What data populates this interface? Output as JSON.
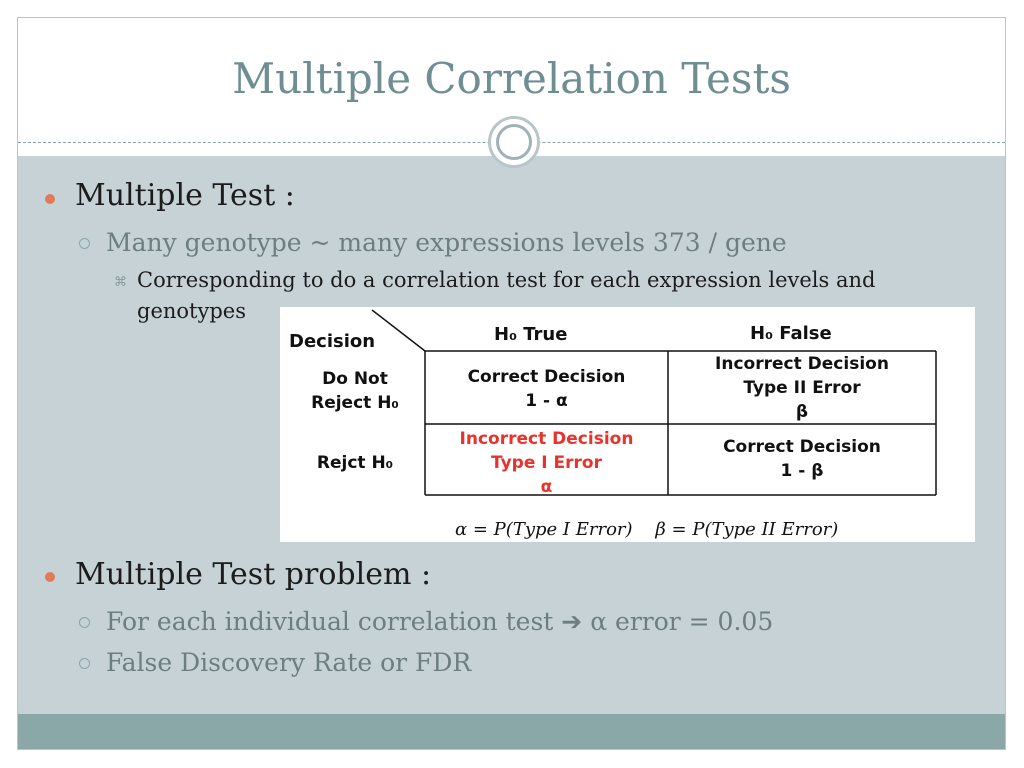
{
  "title": "Multiple Correlation Tests",
  "section1": {
    "heading": "Multiple Test :",
    "sub": "Many genotype ~ many expressions levels 373 / gene",
    "detail_line1": "Corresponding to do a correlation test for each expression levels and",
    "detail_line2": "genotypes"
  },
  "table": {
    "decision_label": "Decision",
    "col_h0_true": "H₀ True",
    "col_h0_false": "H₀ False",
    "row_do_not_line1": "Do Not",
    "row_do_not_line2": "Reject H₀",
    "row_reject": "Rejct H₀",
    "cell_correct_1": "Correct Decision",
    "cell_correct_1_val": "1 - α",
    "cell_incorrect_2_title": "Incorrect Decision",
    "cell_incorrect_2_type": "Type II Error",
    "cell_incorrect_2_sym": "β",
    "cell_incorrect_1_title": "Incorrect Decision",
    "cell_incorrect_1_type": "Type I Error",
    "cell_incorrect_1_sym": "α",
    "cell_correct_2": "Correct Decision",
    "cell_correct_2_val": "1 - β",
    "formula": "α = P(Type I Error)    β = P(Type II Error)"
  },
  "section2": {
    "heading": "Multiple Test problem :",
    "item1": "For each individual correlation test ➔ α error = 0.05",
    "item2": "False Discovery Rate or FDR"
  },
  "colors": {
    "title": "#6f8e92",
    "content_bg": "#c6d2d6",
    "footer": "#8aa8a8",
    "bullet_dot": "#e07b5a",
    "error_red": "#e8332c"
  }
}
